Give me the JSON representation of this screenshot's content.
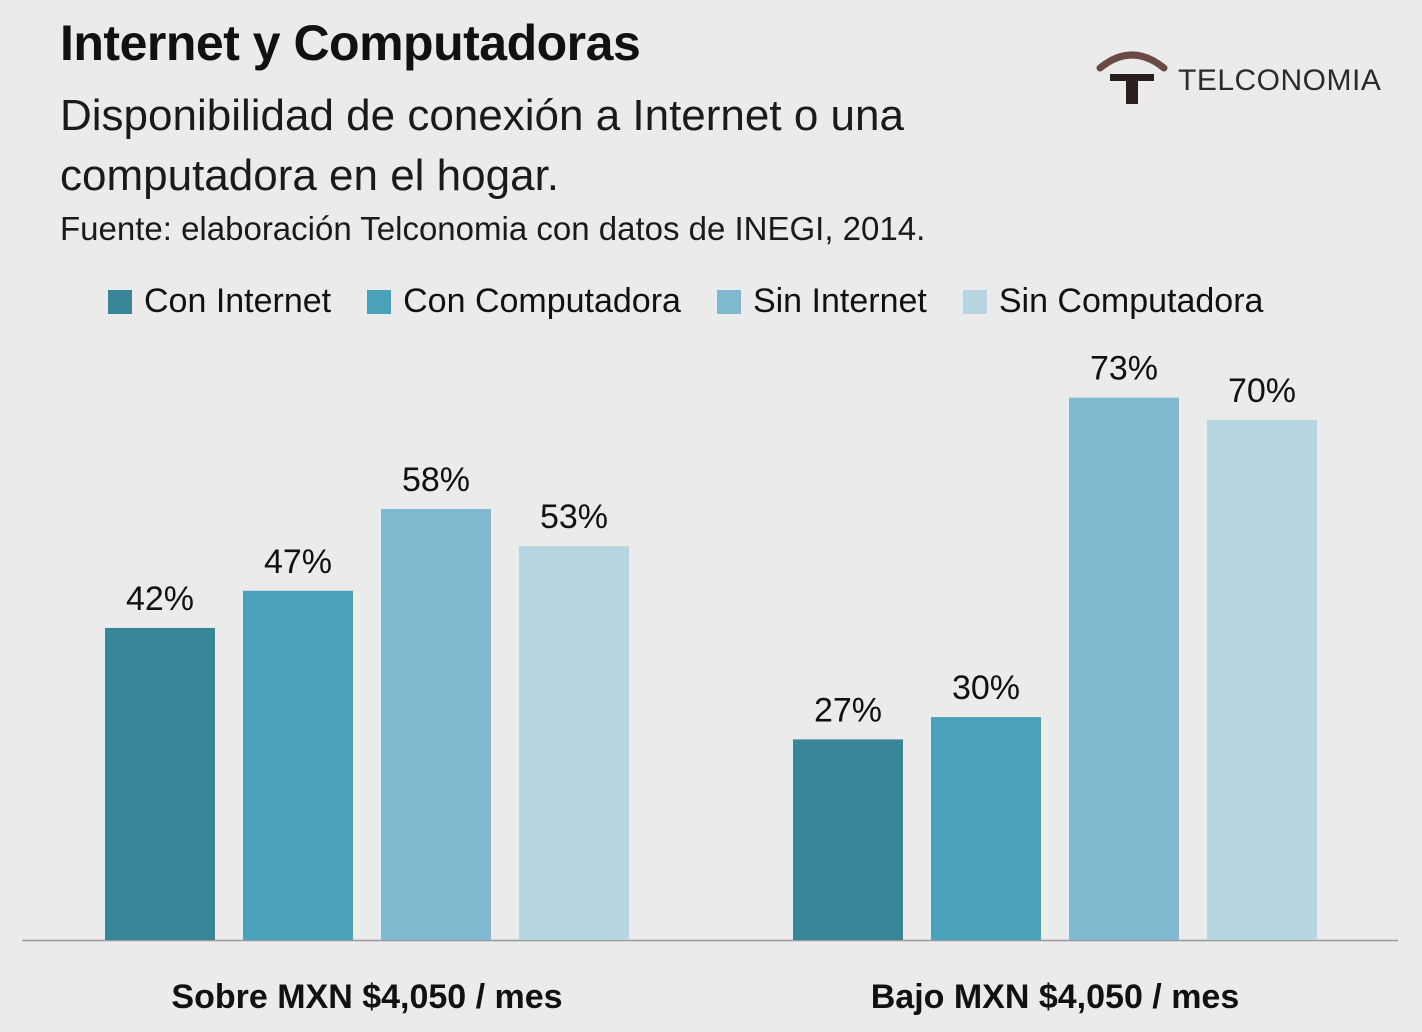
{
  "header": {
    "title": "Internet y Computadoras",
    "subtitle": "Disponibilidad de conexión a Internet o una computadora en el hogar.",
    "source": "Fuente: elaboración Telconomia con datos de INEGI, 2014."
  },
  "logo": {
    "text": "TELCONOMIA",
    "arc_color": "#6b4a46",
    "stem_color": "#2a1f1d"
  },
  "chart_data": {
    "type": "bar",
    "categories": [
      "Sobre MXN $4,050 / mes",
      "Bajo MXN $4,050 / mes"
    ],
    "series": [
      {
        "name": "Con Internet",
        "values": [
          42,
          27
        ],
        "color": "#3a8699"
      },
      {
        "name": "Con Computadora",
        "values": [
          47,
          30
        ],
        "color": "#49a2ba"
      },
      {
        "name": "Sin Internet",
        "values": [
          58,
          73
        ],
        "color": "#7fb9d0"
      },
      {
        "name": "Sin Computadora",
        "values": [
          53,
          70
        ],
        "color": "#b6d5e0"
      }
    ],
    "value_suffix": "%",
    "ylim": [
      0,
      100
    ],
    "legend_position": "top",
    "grid": false
  }
}
